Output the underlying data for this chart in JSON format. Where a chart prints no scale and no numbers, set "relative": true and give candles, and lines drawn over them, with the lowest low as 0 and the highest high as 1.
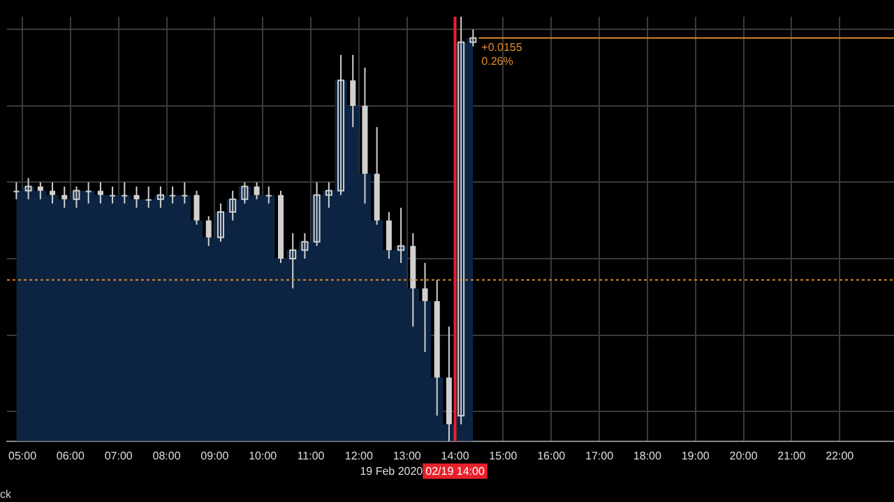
{
  "chart_data": {
    "type": "candlestick",
    "relative": true,
    "color": "#d0d0d0",
    "series": [
      {
        "type": "area",
        "color": "#0c2442",
        "values": [
          0.59,
          0.6,
          0.59,
          0.58,
          0.57,
          0.59,
          0.59,
          0.58,
          0.58,
          0.58,
          0.57,
          0.57,
          0.58,
          0.58,
          0.58,
          0.52,
          0.48,
          0.54,
          0.57,
          0.6,
          0.58,
          0.58,
          0.43,
          0.45,
          0.47,
          0.58,
          0.59,
          0.85,
          0.79,
          0.63,
          0.52,
          0.45,
          0.46,
          0.36,
          0.33,
          0.15,
          0.04,
          0.94,
          0.95
        ]
      }
    ],
    "xlabel": "19 Feb 2020",
    "grid": true,
    "tick_labels": "x",
    "legend": false,
    "x": [
      4.875,
      5.125,
      5.375,
      5.625,
      5.875,
      6.125,
      6.375,
      6.625,
      6.875,
      7.125,
      7.375,
      7.625,
      7.875,
      8.125,
      8.375,
      8.625,
      8.875,
      9.125,
      9.375,
      9.625,
      9.875,
      10.125,
      10.375,
      10.625,
      10.875,
      11.125,
      11.375,
      11.625,
      11.875,
      12.125,
      12.375,
      12.625,
      12.875,
      13.125,
      13.375,
      13.625,
      13.875,
      14.125,
      14.375
    ],
    "ohlc": [
      [
        0.59,
        0.61,
        0.57,
        0.59
      ],
      [
        0.59,
        0.62,
        0.57,
        0.6
      ],
      [
        0.6,
        0.61,
        0.57,
        0.59
      ],
      [
        0.59,
        0.61,
        0.56,
        0.58
      ],
      [
        0.58,
        0.6,
        0.55,
        0.57
      ],
      [
        0.57,
        0.6,
        0.55,
        0.59
      ],
      [
        0.59,
        0.61,
        0.56,
        0.59
      ],
      [
        0.59,
        0.61,
        0.56,
        0.58
      ],
      [
        0.58,
        0.6,
        0.56,
        0.58
      ],
      [
        0.58,
        0.61,
        0.56,
        0.58
      ],
      [
        0.58,
        0.6,
        0.55,
        0.57
      ],
      [
        0.57,
        0.6,
        0.55,
        0.57
      ],
      [
        0.57,
        0.6,
        0.55,
        0.58
      ],
      [
        0.58,
        0.6,
        0.56,
        0.58
      ],
      [
        0.58,
        0.61,
        0.56,
        0.58
      ],
      [
        0.58,
        0.59,
        0.51,
        0.52
      ],
      [
        0.52,
        0.53,
        0.46,
        0.48
      ],
      [
        0.48,
        0.56,
        0.47,
        0.54
      ],
      [
        0.54,
        0.59,
        0.52,
        0.57
      ],
      [
        0.57,
        0.61,
        0.56,
        0.6
      ],
      [
        0.6,
        0.61,
        0.57,
        0.58
      ],
      [
        0.58,
        0.6,
        0.56,
        0.58
      ],
      [
        0.58,
        0.59,
        0.42,
        0.43
      ],
      [
        0.43,
        0.49,
        0.36,
        0.45
      ],
      [
        0.45,
        0.49,
        0.43,
        0.47
      ],
      [
        0.47,
        0.61,
        0.46,
        0.58
      ],
      [
        0.58,
        0.61,
        0.55,
        0.59
      ],
      [
        0.59,
        0.91,
        0.58,
        0.85
      ],
      [
        0.85,
        0.91,
        0.74,
        0.79
      ],
      [
        0.79,
        0.88,
        0.56,
        0.63
      ],
      [
        0.63,
        0.74,
        0.51,
        0.52
      ],
      [
        0.52,
        0.54,
        0.43,
        0.45
      ],
      [
        0.45,
        0.55,
        0.42,
        0.46
      ],
      [
        0.46,
        0.49,
        0.27,
        0.36
      ],
      [
        0.36,
        0.42,
        0.21,
        0.33
      ],
      [
        0.33,
        0.38,
        0.06,
        0.15
      ],
      [
        0.15,
        0.27,
        0,
        0.04
      ],
      [
        0.06,
        1,
        0.04,
        0.94
      ],
      [
        0.94,
        0.97,
        0.93,
        0.95
      ]
    ],
    "xlim": [
      4.68,
      23.13
    ],
    "xticks": [
      {
        "value": 5,
        "label": "05:00"
      },
      {
        "value": 6,
        "label": "06:00"
      },
      {
        "value": 7,
        "label": "07:00"
      },
      {
        "value": 8,
        "label": "08:00"
      },
      {
        "value": 9,
        "label": "09:00"
      },
      {
        "value": 10,
        "label": "10:00"
      },
      {
        "value": 11,
        "label": "11:00"
      },
      {
        "value": 12,
        "label": "12:00"
      },
      {
        "value": 13,
        "label": "13:00"
      },
      {
        "value": 14,
        "label": "14:00"
      },
      {
        "value": 15,
        "label": "15:00"
      },
      {
        "value": 16,
        "label": "16:00"
      },
      {
        "value": 17,
        "label": "17:00"
      },
      {
        "value": 18,
        "label": "18:00"
      },
      {
        "value": 19,
        "label": "19:00"
      },
      {
        "value": 20,
        "label": "20:00"
      },
      {
        "value": 21,
        "label": "21:00"
      },
      {
        "value": 22,
        "label": "22:00"
      }
    ],
    "ref_lines": [
      {
        "axis": "y",
        "value": 0.38,
        "color": "#e08a2c",
        "line_style": "dotted"
      },
      {
        "axis": "y",
        "value": 0.95,
        "color": "#e08a2c",
        "line_style": "solid"
      },
      {
        "axis": "x",
        "value": 14,
        "label": "02/19 14:00",
        "color": "#e8202a",
        "line_style": "solid"
      }
    ],
    "annotations": [
      {
        "text": "+0.0155",
        "x": 14.375,
        "y": 0.95
      },
      {
        "text": "0.26%",
        "x": 14.375,
        "y": 0.95
      },
      "ck"
    ]
  }
}
